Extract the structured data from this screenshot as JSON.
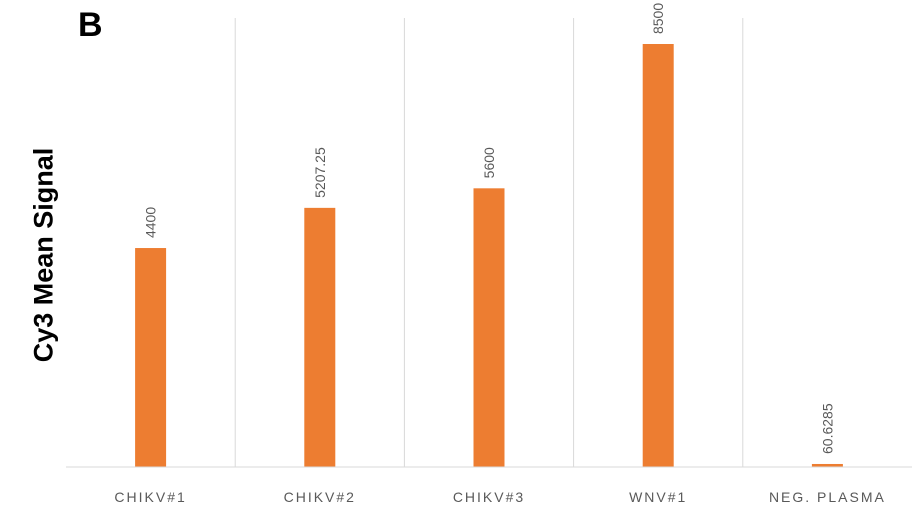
{
  "panel_label": "B",
  "colors": {
    "bar": "#ED7D31",
    "grid": "#D9D9D9",
    "text": "#595959"
  },
  "chart_data": {
    "type": "bar",
    "title": "",
    "xlabel": "",
    "ylabel": "Cy3 Mean Signal",
    "categories": [
      "CHIKV#1",
      "CHIKV#2",
      "CHIKV#3",
      "WNV#1",
      "NEG. PLASMA"
    ],
    "values": [
      4400,
      5207.25,
      5600,
      8500,
      60.6285
    ],
    "data_labels": [
      "4400",
      "5207.25",
      "5600",
      "8500",
      "60.6285"
    ],
    "ylim": [
      0,
      9000
    ],
    "grid": "vertical category separators",
    "legend": "none"
  }
}
